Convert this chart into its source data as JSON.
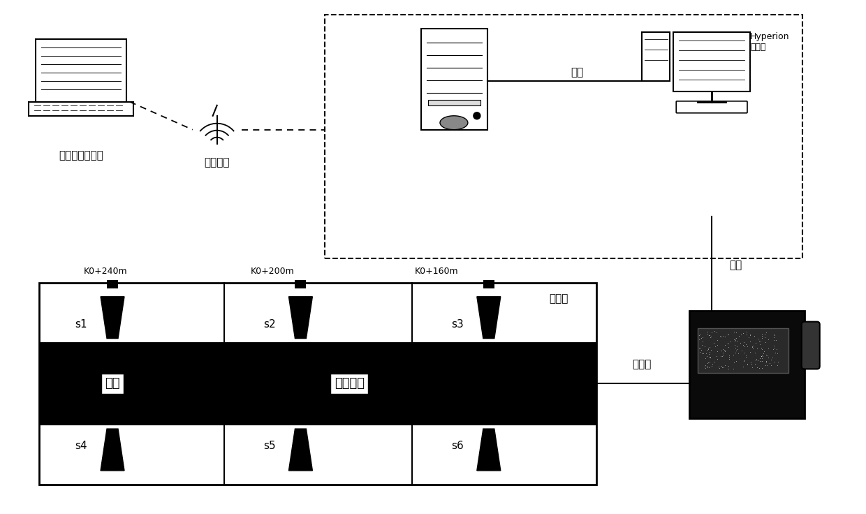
{
  "bg_color": "#ffffff",
  "label_laptop": "双江口营地中心",
  "label_wireless": "无线传输",
  "label_computer": "Hyperion\n计算机",
  "label_sensor": "传感器",
  "label_tunnel": "隊洞",
  "label_direction": "进尺方向",
  "label_cable": "电缆线",
  "label_netline1": "网线",
  "label_netline2": "网线",
  "sensor_labels_top": [
    "s1",
    "s2",
    "s3"
  ],
  "sensor_labels_bot": [
    "s4",
    "s5",
    "s6"
  ],
  "km_labels": [
    "K0+240m",
    "K0+200m",
    "K0+160m"
  ],
  "figsize": [
    12.4,
    7.36
  ],
  "dpi": 100
}
